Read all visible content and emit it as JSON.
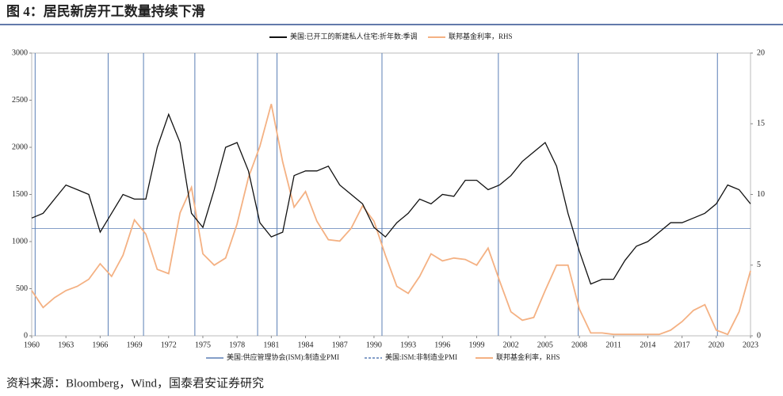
{
  "chart_data": {
    "type": "line",
    "title": "图 4：居民新房开工数量持续下滑",
    "source": "资料来源：Bloomberg，Wind，国泰君安证券研究",
    "xlim": [
      1960,
      2023
    ],
    "xticks": [
      1960,
      1963,
      1966,
      1969,
      1972,
      1975,
      1978,
      1981,
      1984,
      1987,
      1990,
      1993,
      1996,
      1999,
      2002,
      2005,
      2008,
      2011,
      2014,
      2017,
      2020,
      2023
    ],
    "ylim": [
      0,
      3000
    ],
    "yticks": [
      0,
      500,
      1000,
      1500,
      2000,
      2500,
      3000
    ],
    "y2lim": [
      0,
      20
    ],
    "y2ticks": [
      0,
      5,
      10,
      15,
      20
    ],
    "x": [
      1960,
      1961,
      1962,
      1963,
      1964,
      1965,
      1966,
      1967,
      1968,
      1969,
      1970,
      1971,
      1972,
      1973,
      1974,
      1975,
      1976,
      1977,
      1978,
      1979,
      1980,
      1981,
      1982,
      1983,
      1984,
      1985,
      1986,
      1987,
      1988,
      1989,
      1990,
      1991,
      1992,
      1993,
      1994,
      1995,
      1996,
      1997,
      1998,
      1999,
      2000,
      2001,
      2002,
      2003,
      2004,
      2005,
      2006,
      2007,
      2008,
      2009,
      2010,
      2011,
      2012,
      2013,
      2014,
      2015,
      2016,
      2017,
      2018,
      2019,
      2020,
      2021,
      2022,
      2023
    ],
    "series": [
      {
        "name": "美国:已开工的新建私人住宅:折年数:季调",
        "color": "#111111",
        "values": [
          1250,
          1300,
          1450,
          1600,
          1550,
          1500,
          1100,
          1300,
          1500,
          1450,
          1450,
          2000,
          2350,
          2050,
          1300,
          1150,
          1550,
          2000,
          2050,
          1750,
          1200,
          1050,
          1100,
          1700,
          1750,
          1750,
          1800,
          1600,
          1500,
          1400,
          1150,
          1050,
          1200,
          1300,
          1450,
          1400,
          1500,
          1480,
          1650,
          1650,
          1550,
          1600,
          1700,
          1850,
          1950,
          2050,
          1800,
          1300,
          900,
          550,
          600,
          600,
          800,
          950,
          1000,
          1100,
          1200,
          1200,
          1250,
          1300,
          1400,
          1600,
          1550,
          1400
        ]
      },
      {
        "name": "联邦基金利率，RHS",
        "color": "#f4b183",
        "axis": "y2",
        "values": [
          3.2,
          2.0,
          2.7,
          3.2,
          3.5,
          4.0,
          5.1,
          4.2,
          5.7,
          8.2,
          7.2,
          4.7,
          4.4,
          8.7,
          10.5,
          5.8,
          5.0,
          5.5,
          7.9,
          11.2,
          13.4,
          16.4,
          12.3,
          9.1,
          10.2,
          8.1,
          6.8,
          6.7,
          7.6,
          9.2,
          8.1,
          5.7,
          3.5,
          3.0,
          4.2,
          5.8,
          5.3,
          5.5,
          5.4,
          5.0,
          6.2,
          3.9,
          1.7,
          1.1,
          1.3,
          3.2,
          5.0,
          5.0,
          1.9,
          0.2,
          0.2,
          0.1,
          0.1,
          0.1,
          0.1,
          0.1,
          0.4,
          1.0,
          1.8,
          2.2,
          0.4,
          0.1,
          1.7,
          4.6
        ]
      }
    ],
    "reference_lines": [
      {
        "name": "美国:供应管理协会(ISM):制造业PMI",
        "color": "#5b7fb5",
        "x": [
          1960.3,
          1966.7,
          1969.8,
          1974.3,
          1979.8,
          1981.5,
          1990.7,
          2000.9,
          2007.9,
          2020.1
        ]
      },
      {
        "name": "美国:ISM:非制造业PMI",
        "color": "#5b7fb5",
        "y": 1140
      }
    ]
  }
}
